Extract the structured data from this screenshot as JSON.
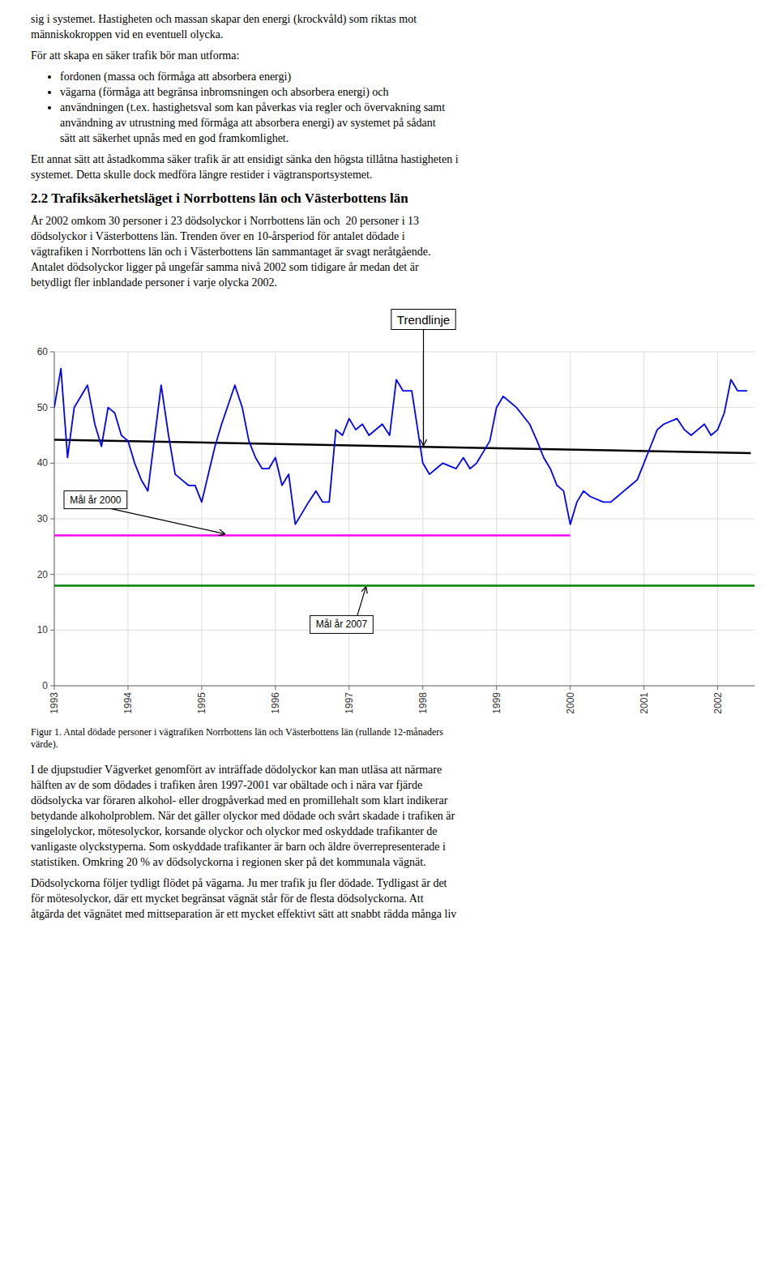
{
  "chart_data": {
    "type": "line",
    "xlim": [
      1993,
      2002.5
    ],
    "xticks": [
      1993,
      1994,
      1995,
      1996,
      1997,
      1998,
      1999,
      2000,
      2001,
      2002
    ],
    "ylim": [
      0,
      60
    ],
    "yticks": [
      0,
      10,
      20,
      30,
      40,
      50,
      60
    ],
    "grid": true,
    "caption": "Figur 1. Antal dödade personer i vägtrafiken Norrbottens län och Västerbottens län (rullande 12-månaders\nvärde).",
    "series": [
      {
        "type": "line",
        "color": "#0000FF",
        "x": [
          1993.0,
          1993.09,
          1993.18,
          1993.27,
          1993.45,
          1993.55,
          1993.64,
          1993.73,
          1993.82,
          1993.91,
          1994.0,
          1994.09,
          1994.18,
          1994.27,
          1994.45,
          1994.55,
          1994.64,
          1994.73,
          1994.82,
          1994.91,
          1995.0,
          1995.09,
          1995.18,
          1995.27,
          1995.45,
          1995.55,
          1995.64,
          1995.73,
          1995.82,
          1995.91,
          1996.0,
          1996.09,
          1996.18,
          1996.27,
          1996.45,
          1996.55,
          1996.64,
          1996.73,
          1996.82,
          1996.91,
          1997.0,
          1997.09,
          1997.18,
          1997.27,
          1997.45,
          1997.55,
          1997.64,
          1997.73,
          1997.85,
          1998.0,
          1998.09,
          1998.18,
          1998.27,
          1998.45,
          1998.55,
          1998.64,
          1998.73,
          1998.82,
          1998.91,
          1999.0,
          1999.09,
          1999.18,
          1999.27,
          1999.45,
          1999.55,
          1999.64,
          1999.73,
          1999.82,
          1999.91,
          2000.0,
          2000.09,
          2000.18,
          2000.27,
          2000.45,
          2000.55,
          2000.64,
          2000.73,
          2000.82,
          2000.91,
          2001.0,
          2001.09,
          2001.18,
          2001.27,
          2001.45,
          2001.55,
          2001.64,
          2001.73,
          2001.82,
          2001.91,
          2002.0,
          2002.09,
          2002.18,
          2002.27,
          2002.4
        ],
        "values": [
          50,
          57,
          41,
          50,
          54,
          47,
          43,
          50,
          49,
          45,
          44,
          40,
          37,
          35,
          54,
          45,
          38,
          37,
          36,
          36,
          33,
          38,
          43,
          47,
          54,
          50,
          44,
          41,
          39,
          39,
          41,
          36,
          38,
          29,
          33,
          35,
          33,
          33,
          46,
          45,
          48,
          46,
          47,
          45,
          47,
          45,
          55,
          53,
          53,
          40,
          38,
          39,
          40,
          39,
          41,
          39,
          40,
          42,
          44,
          50,
          52,
          51,
          50,
          47,
          44,
          41,
          39,
          36,
          35,
          29,
          33,
          35,
          34,
          33,
          33,
          34,
          35,
          36,
          37,
          40,
          43,
          46,
          47,
          48,
          46,
          45,
          46,
          47,
          45,
          46,
          49,
          55,
          53,
          53
        ]
      },
      {
        "type": "line",
        "name": "Trendlinje",
        "color": "#000000",
        "x": [
          1993.0,
          2002.45
        ],
        "values": [
          44.2,
          41.8
        ]
      },
      {
        "type": "line",
        "name": "Mål år 2000",
        "color": "#FF00FF",
        "x": [
          1993.0,
          2000.0
        ],
        "values": [
          27,
          27
        ]
      },
      {
        "type": "hline",
        "name": "Mål år 2007",
        "color": "#008000",
        "values": [
          18
        ]
      }
    ]
  },
  "page_text": {
    "before": [
      {
        "lines": [
          "sig i systemet. Hastigheten och massan skapar den energi (krockvåld) som riktas mot",
          "människokroppen vid en eventuell olycka."
        ]
      },
      {
        "lines": [
          "För att skapa en säker trafik bör man utforma:"
        ]
      },
      {
        "bullets": [
          [
            "fordonen (massa och förmåga att absorbera energi)"
          ],
          [
            "vägarna (förmåga att begränsa inbromsningen och absorbera energi) och"
          ],
          [
            "användningen (t.ex. hastighetsval som kan påverkas via regler och övervakning samt",
            "användning av utrustning med förmåga att absorbera energi) av systemet på sådant",
            "sätt att säkerhet upnås med en god framkomlighet."
          ]
        ]
      },
      {
        "lines": [
          "Ett annat sätt att åstadkomma säker trafik är att ensidigt sänka den högsta tillåtna hastigheten i",
          "systemet. Detta skulle dock medföra längre restider i vägtransportsystemet."
        ]
      },
      {
        "heading": "2.2 Trafiksäkerhetsläget i Norrbottens län och Västerbottens län"
      },
      {
        "lines": [
          "År 2002 omkom 30 personer i 23 dödsolyckor i Norrbottens län och  20 personer i 13",
          "dödsolyckor i Västerbottens län. Trenden över en 10-årsperiod för antalet dödade i",
          "vägtrafiken i Norrbottens län och i Västerbottens län sammantaget är svagt neråtgående.",
          "Antalet dödsolyckor ligger på ungefär samma nivå 2002 som tidigare år medan det är",
          "betydligt fler inblandade personer i varje olycka 2002."
        ]
      }
    ],
    "after": [
      {
        "lines": [
          "I de djupstudier Vägverket genomfört av inträffade dödolyckor kan man utläsa att närmare",
          "hälften av de som dödades i trafiken åren 1997-2001 var obältade och i nära var fjärde",
          "dödsolycka var föraren alkohol- eller drogpåverkad med en promillehalt som klart indikerar",
          "betydande alkoholproblem. När det gäller olyckor med dödade och svårt skadade i trafiken är",
          "singelolyckor, mötesolyckor, korsande olyckor och olyckor med oskyddade trafikanter de",
          "vanligaste olyckstyperna. Som oskyddade trafikanter är barn och äldre överrepresenterade i",
          "statistiken. Omkring 20 % av dödsolyckorna i regionen sker på det kommunala vägnät."
        ]
      },
      {
        "lines": [
          "Dödsolyckorna följer tydligt flödet på vägarna. Ju mer trafik ju fler dödade. Tydligast är det",
          "för mötesolyckor, där ett mycket begränsat vägnät står för de flesta dödsolyckorna. Att",
          "åtgärda det vägnätet med mittseparation är ett mycket effektivt sätt att snabbt rädda många liv"
        ]
      }
    ]
  }
}
